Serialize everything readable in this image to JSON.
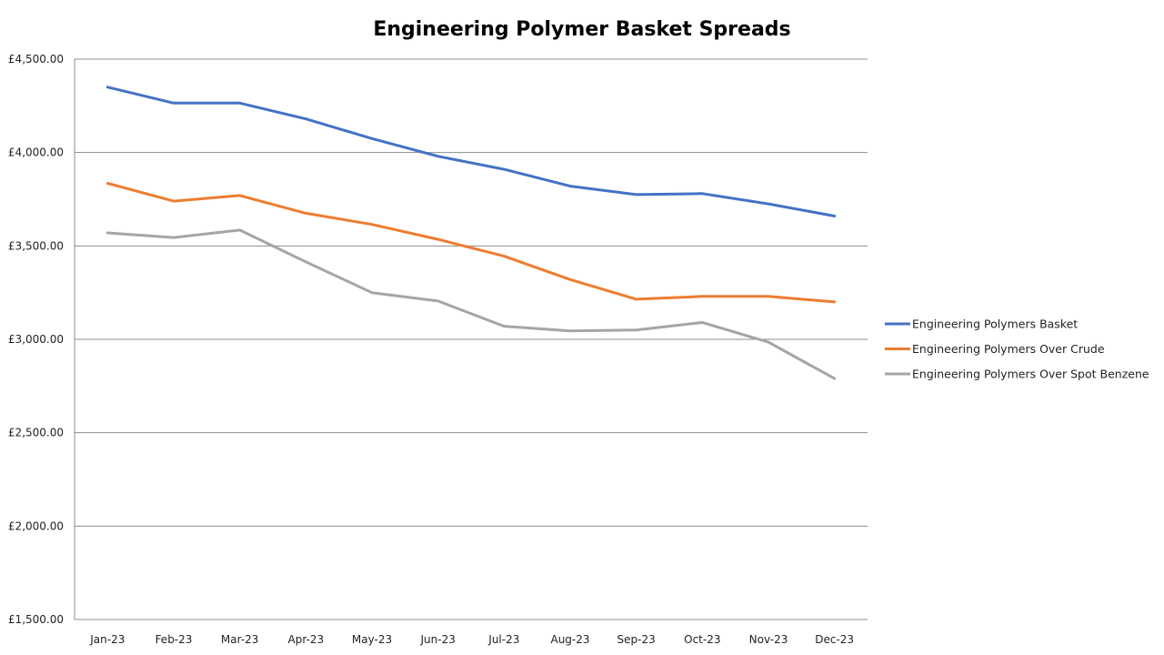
{
  "chart_data": {
    "type": "line",
    "title": "Engineering Polymer Basket Spreads",
    "xlabel": "",
    "ylabel": "",
    "categories": [
      "Jan-23",
      "Feb-23",
      "Mar-23",
      "Apr-23",
      "May-23",
      "Jun-23",
      "Jul-23",
      "Aug-23",
      "Sep-23",
      "Oct-23",
      "Nov-23",
      "Dec-23"
    ],
    "ylim": [
      1500,
      4500
    ],
    "yticks": [
      {
        "value": 1500,
        "label": "£1,500.00"
      },
      {
        "value": 2000,
        "label": "£2,000.00"
      },
      {
        "value": 2500,
        "label": "£2,500.00"
      },
      {
        "value": 3000,
        "label": "£3,000.00"
      },
      {
        "value": 3500,
        "label": "£3,500.00"
      },
      {
        "value": 4000,
        "label": "£4,000.00"
      },
      {
        "value": 4500,
        "label": "£4,500.00"
      }
    ],
    "grid": true,
    "legend_position": "right",
    "series": [
      {
        "name": "Engineering Polymers Basket",
        "color": "#4472C4",
        "values": [
          4350,
          4265,
          4265,
          4180,
          4075,
          3980,
          3910,
          3820,
          3775,
          3780,
          3725,
          3660
        ]
      },
      {
        "name": "Engineering Polymers Over Crude",
        "color": "#ED7D31",
        "values": [
          3835,
          3740,
          3770,
          3675,
          3615,
          3535,
          3445,
          3320,
          3215,
          3230,
          3230,
          3200
        ]
      },
      {
        "name": "Engineering Polymers Over Spot Benzene",
        "color": "#A5A5A5",
        "values": [
          3570,
          3545,
          3585,
          3415,
          3250,
          3205,
          3070,
          3045,
          3050,
          3090,
          2985,
          2790
        ]
      }
    ]
  }
}
